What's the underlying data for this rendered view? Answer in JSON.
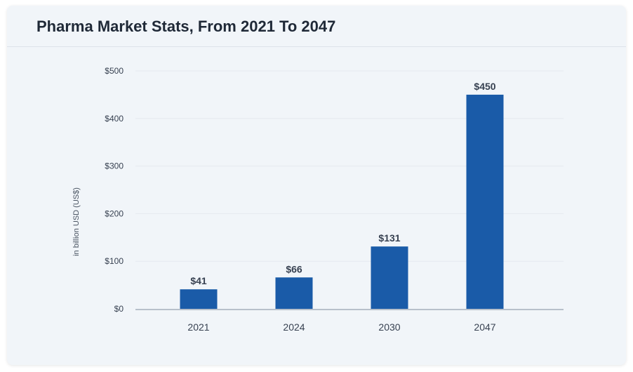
{
  "chart_data": {
    "type": "bar",
    "title": "Pharma Market Stats, From 2021 To 2047",
    "xlabel": "",
    "ylabel": "in billion USD (US$)",
    "categories": [
      "2021",
      "2024",
      "2030",
      "2047"
    ],
    "values": [
      41,
      66,
      131,
      450
    ],
    "data_labels": [
      "$41",
      "$66",
      "$131",
      "$450"
    ],
    "ylim": [
      0,
      500
    ],
    "yticks": [
      0,
      100,
      200,
      300,
      400,
      500
    ],
    "ytick_labels": [
      "$0",
      "$100",
      "$200",
      "$300",
      "$400",
      "$500"
    ],
    "grid": true,
    "legend": "none",
    "colors": {
      "bar": "#1a5ba8",
      "grid": "#e5e9ef",
      "axis": "#b8c0cb",
      "card": "#f1f5f9"
    }
  }
}
